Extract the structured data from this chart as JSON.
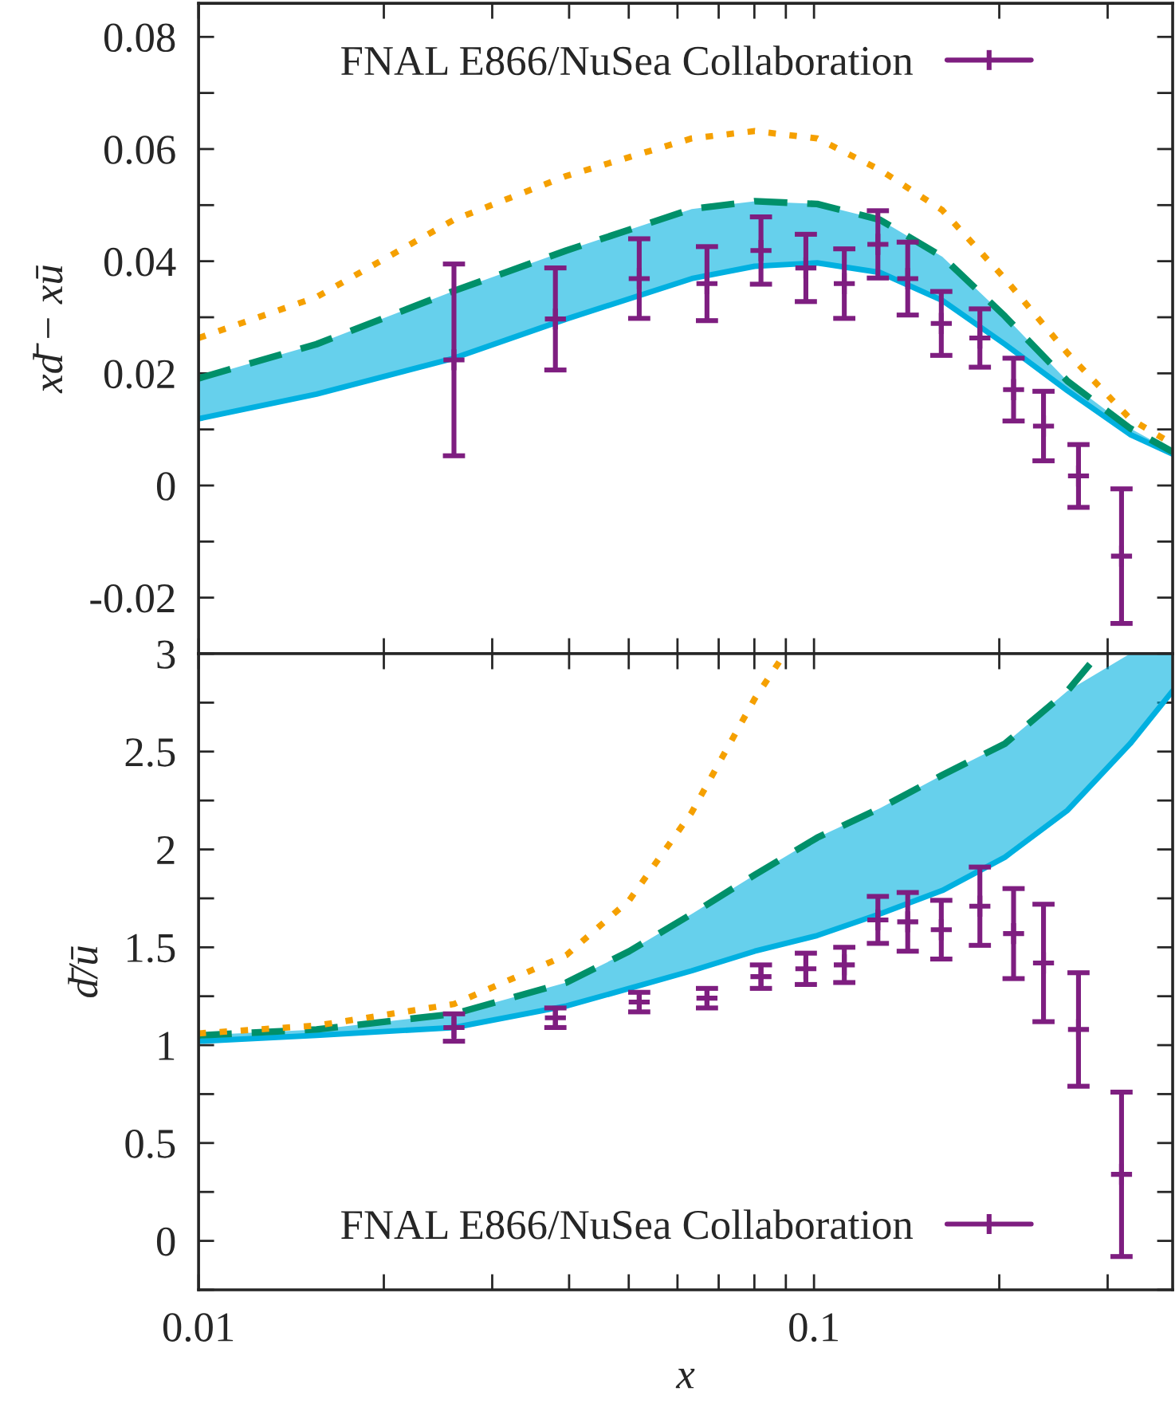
{
  "chart_data": [
    {
      "type": "line",
      "ylabel": "xd̄ − xū",
      "log": "x",
      "tick_labels": "y",
      "legend": "top",
      "xlim": [
        0.01,
        0.3826
      ],
      "ylim": [
        -0.03,
        0.086
      ],
      "xticks": [
        {
          "value": 0.01,
          "label": null
        },
        {
          "value": 0.02,
          "label": null
        },
        {
          "value": 0.03,
          "label": null
        },
        {
          "value": 0.04,
          "label": null
        },
        {
          "value": 0.05,
          "label": null
        },
        {
          "value": 0.06,
          "label": null
        },
        {
          "value": 0.07,
          "label": null
        },
        {
          "value": 0.08,
          "label": null
        },
        {
          "value": 0.09,
          "label": null
        },
        {
          "value": 0.1,
          "label": null
        },
        {
          "value": 0.2,
          "label": null
        },
        {
          "value": 0.3,
          "label": null
        }
      ],
      "yticks": [
        -0.02,
        {
          "value": -0.01,
          "label": null
        },
        0,
        {
          "value": 0.01,
          "label": null
        },
        0.02,
        {
          "value": 0.03,
          "label": null
        },
        0.04,
        {
          "value": 0.05,
          "label": null
        },
        0.06,
        {
          "value": 0.07,
          "label": null
        },
        0.08
      ],
      "series": [
        {
          "line_style": "solid",
          "color": "#00b0e0",
          "x": [
            0.01,
            0.01555,
            0.026,
            0.0396,
            0.0633,
            0.0801,
            0.1012,
            0.1279,
            0.1616,
            0.2042,
            0.2582,
            0.3263,
            0.3826
          ],
          "values": [
            0.0119,
            0.0163,
            0.0227,
            0.0297,
            0.0369,
            0.0391,
            0.0397,
            0.038,
            0.033,
            0.0252,
            0.0169,
            0.0091,
            0.0056
          ],
          "lower": [
            0.0119,
            0.0163,
            0.0227,
            0.0297,
            0.0369,
            0.0391,
            0.0397,
            0.038,
            0.033,
            0.0252,
            0.0169,
            0.0091,
            0.0056
          ],
          "upper": [
            0.0191,
            0.0252,
            0.0347,
            0.0419,
            0.0493,
            0.0507,
            0.0502,
            0.0474,
            0.0408,
            0.0302,
            0.0186,
            0.0102,
            0.006
          ]
        },
        {
          "line_style": "dashed",
          "color": "#00906a",
          "x": [
            0.01,
            0.01555,
            0.026,
            0.0396,
            0.0633,
            0.0801,
            0.1012,
            0.1279,
            0.1616,
            0.2042,
            0.2582,
            0.3263,
            0.3826
          ],
          "values": [
            0.0191,
            0.0252,
            0.0347,
            0.0419,
            0.0493,
            0.0507,
            0.0502,
            0.0474,
            0.0408,
            0.0302,
            0.0186,
            0.0102,
            0.006
          ]
        },
        {
          "line_style": "dotted",
          "color": "#f5a000",
          "x": [
            0.01,
            0.01555,
            0.026,
            0.0396,
            0.0633,
            0.0801,
            0.1012,
            0.1279,
            0.1616,
            0.2042,
            0.2582,
            0.3263,
            0.3826
          ],
          "values": [
            0.0263,
            0.0336,
            0.0474,
            0.0552,
            0.0619,
            0.0632,
            0.0619,
            0.0563,
            0.0491,
            0.0369,
            0.0236,
            0.0119,
            0.0074
          ]
        },
        {
          "type": "scatter",
          "marker": "cross",
          "name": "FNAL E866/NuSea Collaboration",
          "color": "#7e1e80",
          "x": [
            0.026,
            0.038,
            0.052,
            0.067,
            0.082,
            0.097,
            0.112,
            0.127,
            0.142,
            0.161,
            0.186,
            0.211,
            0.236,
            0.269,
            0.316
          ],
          "values": [
            0.0224,
            0.0297,
            0.0369,
            0.036,
            0.0419,
            0.0388,
            0.036,
            0.043,
            0.0369,
            0.0289,
            0.0263,
            0.0171,
            0.0106,
            0.0017,
            -0.0126
          ],
          "errors": [
            0.0171,
            0.0091,
            0.0071,
            0.0066,
            0.006,
            0.006,
            0.0062,
            0.006,
            0.0065,
            0.0057,
            0.0052,
            0.0056,
            0.0062,
            0.0056,
            0.012
          ]
        }
      ]
    },
    {
      "type": "line",
      "ylabel": "d̄/ū",
      "xlabel": "x",
      "log": "x",
      "legend": "bottom",
      "xlim": [
        0.01,
        0.3826
      ],
      "ylim": [
        -0.25,
        3
      ],
      "xticks": [
        0.01,
        {
          "value": 0.02,
          "label": null
        },
        {
          "value": 0.03,
          "label": null
        },
        {
          "value": 0.04,
          "label": null
        },
        {
          "value": 0.05,
          "label": null
        },
        {
          "value": 0.06,
          "label": null
        },
        {
          "value": 0.07,
          "label": null
        },
        {
          "value": 0.08,
          "label": null
        },
        {
          "value": 0.09,
          "label": null
        },
        0.1,
        {
          "value": 0.2,
          "label": null
        },
        {
          "value": 0.3,
          "label": null
        }
      ],
      "yticks": [
        {
          "value": -0.25,
          "label": null
        },
        0,
        {
          "value": 0.25,
          "label": null
        },
        0.5,
        {
          "value": 0.75,
          "label": null
        },
        1,
        {
          "value": 1.25,
          "label": null
        },
        1.5,
        {
          "value": 1.75,
          "label": null
        },
        2,
        {
          "value": 2.25,
          "label": null
        },
        2.5,
        {
          "value": 2.75,
          "label": null
        },
        3
      ],
      "series": [
        {
          "line_style": "solid",
          "color": "#00b0e0",
          "x": [
            0.01,
            0.01555,
            0.026,
            0.0396,
            0.0501,
            0.0633,
            0.0801,
            0.1012,
            0.1279,
            0.1616,
            0.2042,
            0.2582,
            0.3263,
            0.3826
          ],
          "values": [
            1.02,
            1.05,
            1.09,
            1.2,
            1.29,
            1.38,
            1.48,
            1.56,
            1.67,
            1.79,
            1.96,
            2.2,
            2.54,
            2.81
          ],
          "lower": [
            1.02,
            1.05,
            1.09,
            1.2,
            1.29,
            1.38,
            1.48,
            1.56,
            1.67,
            1.79,
            1.96,
            2.2,
            2.54,
            2.81
          ],
          "upper": [
            1.05,
            1.08,
            1.16,
            1.32,
            1.48,
            1.67,
            1.87,
            2.06,
            2.21,
            2.38,
            2.54,
            2.81,
            3.0,
            3.0
          ]
        },
        {
          "line_style": "dashed",
          "color": "#00906a",
          "x": [
            0.01,
            0.01555,
            0.026,
            0.0396,
            0.0501,
            0.0633,
            0.0801,
            0.1012,
            0.1279,
            0.1616,
            0.2042,
            0.2582,
            0.29
          ],
          "values": [
            1.05,
            1.08,
            1.16,
            1.32,
            1.48,
            1.67,
            1.87,
            2.06,
            2.21,
            2.38,
            2.54,
            2.81,
            3.0
          ]
        },
        {
          "line_style": "dotted",
          "color": "#f5a000",
          "x": [
            0.01,
            0.01555,
            0.026,
            0.0396,
            0.0501,
            0.0633,
            0.0712,
            0.0801,
            0.0896
          ],
          "values": [
            1.06,
            1.1,
            1.21,
            1.46,
            1.74,
            2.19,
            2.48,
            2.77,
            3.0
          ]
        },
        {
          "type": "scatter",
          "marker": "cross",
          "name": "FNAL E866/NuSea Collaboration",
          "color": "#7e1e80",
          "x": [
            0.026,
            0.038,
            0.052,
            0.067,
            0.082,
            0.097,
            0.112,
            0.127,
            0.142,
            0.161,
            0.186,
            0.211,
            0.236,
            0.269,
            0.316
          ],
          "values": [
            1.09,
            1.14,
            1.22,
            1.24,
            1.35,
            1.39,
            1.41,
            1.64,
            1.63,
            1.59,
            1.71,
            1.57,
            1.42,
            1.08,
            0.34
          ],
          "errors": [
            0.07,
            0.05,
            0.05,
            0.05,
            0.06,
            0.08,
            0.09,
            0.12,
            0.15,
            0.15,
            0.2,
            0.23,
            0.3,
            0.29,
            0.42
          ]
        }
      ]
    }
  ]
}
